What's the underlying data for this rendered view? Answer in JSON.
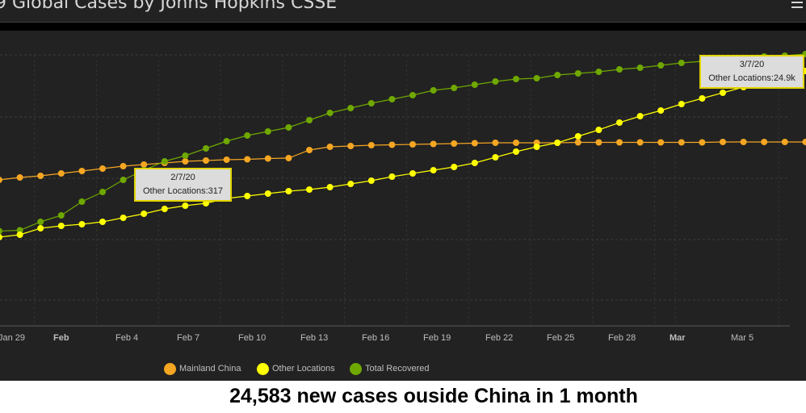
{
  "title": "9 Global Cases by Johns Hopkins CSSE",
  "menu_icon": "hamburger-menu-icon",
  "caption": "24,583 new cases ouside China in 1 month",
  "tooltips": [
    {
      "date": "2/7/20",
      "text": "Other Locations:317"
    },
    {
      "date": "3/7/20",
      "text": "Other Locations:24.9k"
    }
  ],
  "colors": {
    "mainland": "#f5a623",
    "other": "#ffff00",
    "recovered": "#6fa800",
    "background": "#222222"
  },
  "chart_data": {
    "type": "line",
    "xlabel": "",
    "ylabel": "",
    "x_tick_labels": [
      "Jan 29",
      "Feb",
      "Feb 4",
      "Feb 7",
      "Feb 10",
      "Feb 13",
      "Feb 16",
      "Feb 19",
      "Feb 22",
      "Feb 25",
      "Feb 28",
      "Mar",
      "Mar 5"
    ],
    "x_start": "2020-01-28",
    "x_end": "2020-03-07",
    "grid": true,
    "legend_position": "bottom",
    "series": [
      {
        "name": "Mainland China",
        "color": "#f5a623",
        "values": [
          0.72,
          0.75,
          0.77,
          0.8,
          0.83,
          0.86,
          0.89,
          0.91,
          0.93,
          0.95,
          0.96,
          0.97,
          0.975,
          0.985,
          0.99,
          1.09,
          1.13,
          1.14,
          1.15,
          1.155,
          1.16,
          1.165,
          1.17,
          1.175,
          1.18,
          1.18,
          1.18,
          1.18,
          1.185,
          1.185,
          1.185,
          1.185,
          1.185,
          1.185,
          1.185,
          1.19,
          1.19,
          1.19,
          1.19,
          1.19
        ]
      },
      {
        "name": "Other Locations",
        "color": "#ffff00",
        "values": [
          0.01,
          0.04,
          0.12,
          0.15,
          0.17,
          0.2,
          0.25,
          0.3,
          0.36,
          0.4,
          0.43,
          0.49,
          0.52,
          0.55,
          0.58,
          0.6,
          0.63,
          0.67,
          0.71,
          0.76,
          0.8,
          0.84,
          0.88,
          0.93,
          1.0,
          1.07,
          1.13,
          1.18,
          1.26,
          1.34,
          1.43,
          1.51,
          1.58,
          1.66,
          1.73,
          1.8,
          1.87,
          1.94,
          2.01,
          2.07
        ]
      },
      {
        "name": "Total Recovered",
        "color": "#6fa800",
        "values": [
          0.085,
          0.095,
          0.2,
          0.28,
          0.45,
          0.57,
          0.72,
          0.84,
          0.95,
          1.02,
          1.11,
          1.2,
          1.27,
          1.32,
          1.37,
          1.46,
          1.55,
          1.61,
          1.67,
          1.72,
          1.77,
          1.83,
          1.86,
          1.9,
          1.94,
          1.97,
          1.98,
          2.02,
          2.04,
          2.06,
          2.09,
          2.11,
          2.14,
          2.17,
          2.19,
          2.21,
          2.23,
          2.25,
          2.26,
          2.28
        ]
      }
    ]
  }
}
